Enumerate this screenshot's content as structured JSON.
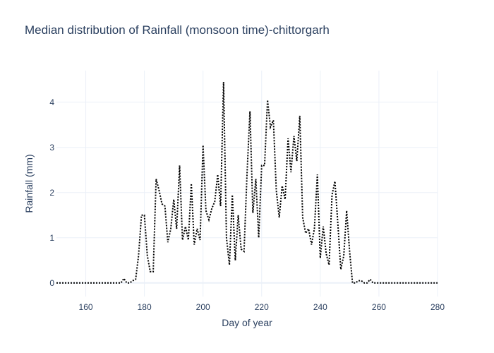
{
  "chart_data": {
    "type": "line",
    "title": "Median distribution of Rainfall (monsoon time)-chittorgarh",
    "xlabel": "Day of year",
    "ylabel": "Rainfall (mm)",
    "xlim": [
      150,
      280
    ],
    "ylim": [
      -0.3,
      4.7
    ],
    "x_ticks": [
      160,
      180,
      200,
      220,
      240,
      260,
      280
    ],
    "y_ticks": [
      0,
      1,
      2,
      3,
      4
    ],
    "grid": true,
    "line_color": "#000000",
    "line_style": "dotted",
    "series": [
      {
        "x": [
          150,
          151,
          152,
          153,
          154,
          155,
          156,
          157,
          158,
          159,
          160,
          161,
          162,
          163,
          164,
          165,
          166,
          167,
          168,
          169,
          170,
          171,
          172,
          173,
          174,
          175,
          176,
          177,
          178,
          179,
          180,
          181,
          182,
          183,
          184,
          185,
          186,
          187,
          188,
          189,
          190,
          191,
          192,
          193,
          194,
          195,
          196,
          197,
          198,
          199,
          200,
          201,
          202,
          203,
          204,
          205,
          206,
          207,
          208,
          209,
          210,
          211,
          212,
          213,
          214,
          215,
          216,
          217,
          218,
          219,
          220,
          221,
          222,
          223,
          224,
          225,
          226,
          227,
          228,
          229,
          230,
          231,
          232,
          233,
          234,
          235,
          236,
          237,
          238,
          239,
          240,
          241,
          242,
          243,
          244,
          245,
          246,
          247,
          248,
          249,
          250,
          251,
          252,
          253,
          254,
          255,
          256,
          257,
          258,
          259,
          260,
          261,
          262,
          263,
          264,
          265,
          266,
          267,
          268,
          269,
          270,
          271,
          272,
          273,
          274,
          275,
          276,
          277,
          278,
          279,
          280
        ],
        "y": [
          0,
          0,
          0,
          0,
          0,
          0,
          0,
          0,
          0,
          0,
          0,
          0,
          0,
          0,
          0,
          0,
          0,
          0,
          0,
          0,
          0,
          0,
          0,
          0.1,
          0,
          0,
          0.05,
          0.08,
          0.6,
          1.5,
          1.5,
          0.6,
          0.25,
          0.25,
          2.3,
          2.05,
          1.75,
          1.7,
          0.9,
          1.2,
          1.85,
          1.2,
          2.6,
          0.95,
          1.25,
          0.95,
          2.2,
          0.85,
          1.2,
          0.95,
          3.05,
          1.6,
          1.4,
          1.65,
          1.8,
          2.4,
          1.7,
          4.45,
          1.0,
          0.4,
          1.95,
          0.5,
          1.5,
          0.75,
          0.7,
          2.4,
          3.8,
          1.55,
          2.3,
          1.0,
          2.6,
          2.6,
          4.05,
          3.45,
          3.6,
          2.05,
          1.45,
          2.15,
          1.85,
          3.2,
          2.45,
          3.25,
          2.7,
          3.7,
          1.45,
          1.1,
          1.2,
          0.85,
          1.2,
          2.4,
          0.55,
          1.25,
          0.65,
          0.4,
          1.95,
          2.25,
          1.3,
          0.3,
          0.6,
          1.6,
          0.7,
          0,
          0,
          0.05,
          0.05,
          0,
          0,
          0.08,
          0,
          0,
          0,
          0,
          0,
          0,
          0,
          0,
          0,
          0,
          0,
          0,
          0,
          0,
          0,
          0,
          0,
          0,
          0,
          0,
          0,
          0,
          0
        ]
      }
    ]
  }
}
